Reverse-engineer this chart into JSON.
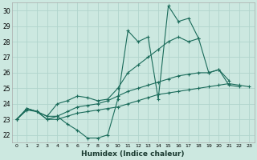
{
  "xlabel": "Humidex (Indice chaleur)",
  "background_color": "#cce8e0",
  "grid_color": "#b0d4cc",
  "line_color": "#1a6b5a",
  "xlim": [
    -0.5,
    23.5
  ],
  "ylim": [
    21.5,
    30.5
  ],
  "yticks": [
    22,
    23,
    24,
    25,
    26,
    27,
    28,
    29,
    30
  ],
  "xticks": [
    0,
    1,
    2,
    3,
    4,
    5,
    6,
    7,
    8,
    9,
    10,
    11,
    12,
    13,
    14,
    15,
    16,
    17,
    18,
    19,
    20,
    21,
    22,
    23
  ],
  "series": [
    {
      "x": [
        0,
        1,
        2,
        3,
        4,
        5,
        6,
        7,
        8,
        9,
        10,
        11,
        12,
        13,
        14,
        15,
        16,
        17,
        18
      ],
      "y": [
        23.0,
        23.7,
        23.5,
        23.2,
        23.2,
        22.7,
        22.3,
        21.8,
        21.8,
        22.0,
        24.3,
        28.7,
        28.0,
        28.3,
        24.3,
        30.3,
        29.3,
        29.5,
        28.2
      ]
    },
    {
      "x": [
        0,
        1,
        2,
        3,
        4,
        5,
        6,
        7,
        8,
        9,
        10,
        11,
        12,
        13,
        14,
        15,
        16,
        17,
        18,
        19,
        20,
        21
      ],
      "y": [
        23.0,
        23.7,
        23.5,
        23.2,
        24.0,
        24.2,
        24.5,
        24.4,
        24.2,
        24.3,
        25.0,
        26.0,
        26.5,
        27.0,
        27.5,
        28.0,
        28.3,
        28.0,
        28.2,
        26.0,
        26.2,
        25.5
      ]
    },
    {
      "x": [
        0,
        1,
        2,
        3,
        4,
        5,
        6,
        7,
        8,
        9,
        10,
        11,
        12,
        13,
        14,
        15,
        16,
        17,
        18,
        19,
        20,
        21,
        22
      ],
      "y": [
        23.0,
        23.7,
        23.5,
        23.0,
        23.2,
        23.5,
        23.8,
        23.9,
        24.0,
        24.2,
        24.5,
        24.8,
        25.0,
        25.2,
        25.4,
        25.6,
        25.8,
        25.9,
        26.0,
        26.0,
        26.2,
        25.2,
        25.1
      ]
    },
    {
      "x": [
        0,
        1,
        2,
        3,
        4,
        5,
        6,
        7,
        8,
        9,
        10,
        11,
        12,
        13,
        14,
        15,
        16,
        17,
        18,
        19,
        20,
        21,
        22,
        23
      ],
      "y": [
        23.0,
        23.6,
        23.5,
        23.0,
        23.0,
        23.2,
        23.4,
        23.5,
        23.6,
        23.7,
        23.8,
        24.0,
        24.2,
        24.4,
        24.6,
        24.7,
        24.8,
        24.9,
        25.0,
        25.1,
        25.2,
        25.3,
        25.2,
        25.1
      ]
    }
  ]
}
